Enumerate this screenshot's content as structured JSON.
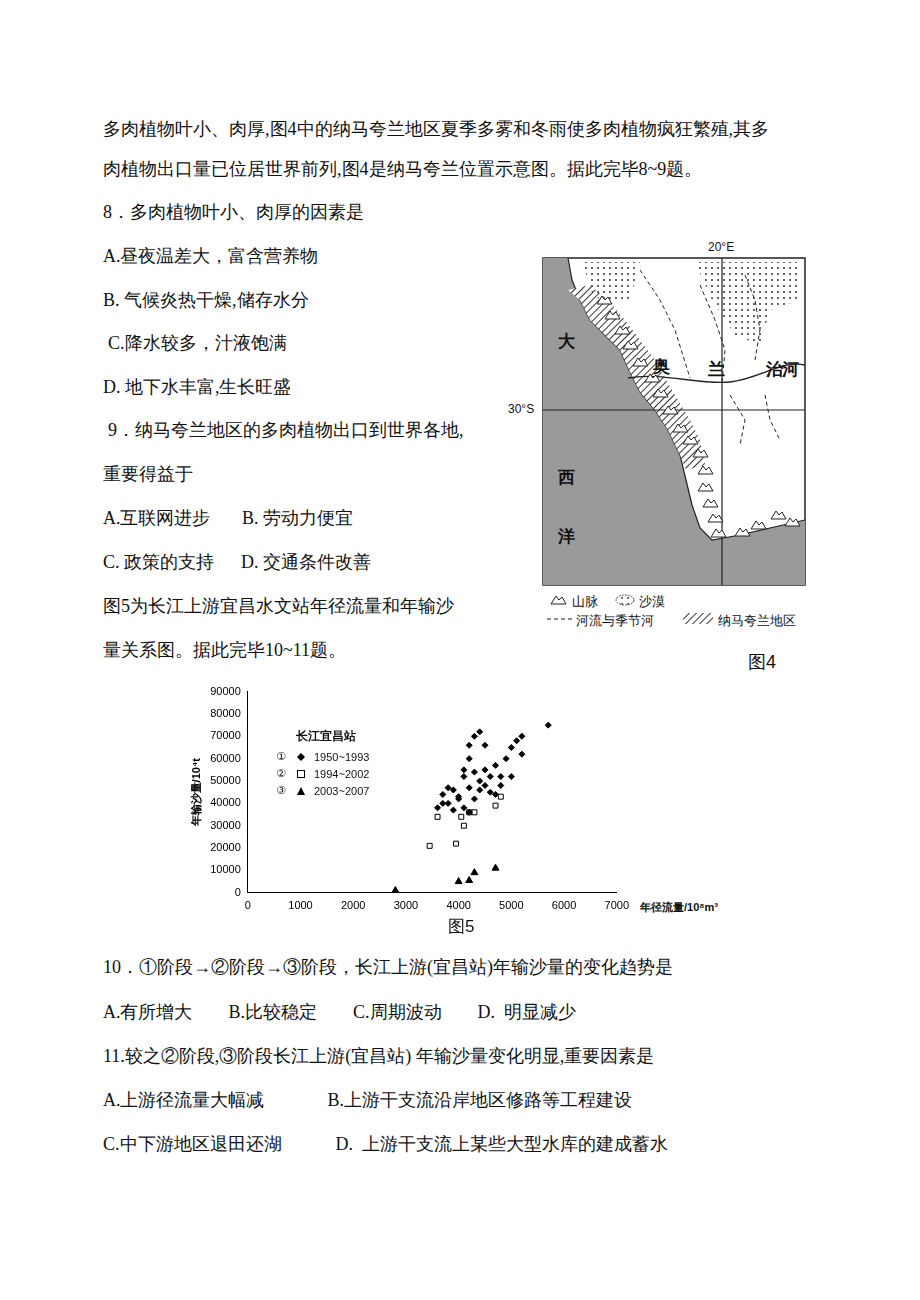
{
  "top_lines": [
    "多肉植物叶小、肉厚,图4中的纳马夸兰地区夏季多雾和冬雨使多肉植物疯狂繁殖,其多",
    "肉植物出口量已位居世界前列,图4是纳马夸兰位置示意图。据此完毕8~9题。",
    "8．多肉植物叶小、肉厚的因素是",
    "A.昼夜温差大，富含营养物",
    "B. 气候炎热干燥,储存水分",
    "C.降水较多，汁液饱满",
    "D. 地下水丰富,生长旺盛",
    "9．纳马夸兰地区的多肉植物出口到世界各地,",
    "重要得益于",
    "A.互联网进步       B. 劳动力便宜",
    "C. 政策的支持      D. 交通条件改善",
    "图5为长江上游宜昌水文站年径流量和年输沙",
    "量关系图。据此完毕10~11题。"
  ],
  "bottom_lines": [
    "10．①阶段→②阶段→③阶段，长江上游(宜昌站)年输沙量的变化趋势是",
    "A.有所增大        B.比较稳定        C.周期波动        D.  明显减少",
    "11.较之②阶段,③阶段长江上游(宜昌站) 年输沙量变化明显,重要因素是",
    "A.上游径流量大幅减              B.上游干支流沿岸地区修路等工程建设",
    "C.中下游地区退田还湖            D.  上游干支流上某些大型水库的建成蓄水"
  ],
  "figure4": {
    "caption": "图4",
    "lon_label": "20°E",
    "lat_label": "30°S",
    "ocean": [
      "大",
      "西",
      "洋"
    ],
    "river": [
      "奥",
      "兰",
      "治",
      "河"
    ],
    "legend": {
      "mountain": "山脉",
      "desert": "沙漠",
      "river": "河流与季节河",
      "region": "纳马夸兰地区"
    }
  },
  "figure5_caption": "图5",
  "chart_data": {
    "type": "scatter",
    "title": "长江宜昌站",
    "x_label": "年径流量/10⁸m³",
    "y_label": "年输沙量/10⁴t",
    "xlim": [
      0,
      7000
    ],
    "xticks": [
      0,
      1000,
      2000,
      3000,
      4000,
      5000,
      6000,
      7000
    ],
    "ylim": [
      0,
      90000
    ],
    "yticks": [
      0,
      10000,
      20000,
      30000,
      40000,
      50000,
      60000,
      70000,
      80000,
      90000
    ],
    "grid": false,
    "legend": "upper left",
    "series": [
      {
        "name": "1950~1993",
        "index_label": "①",
        "marker": "diamond",
        "color": "#000000",
        "x": [
          5700,
          5200,
          5100,
          5200,
          4900,
          5000,
          4400,
          4300,
          4200,
          4500,
          4200,
          4100,
          4300,
          4500,
          4600,
          4700,
          4800,
          3800,
          3700,
          3800,
          4100,
          4000,
          3600,
          3900,
          4400,
          4500,
          4200,
          4000,
          3900,
          4300,
          4700,
          5000,
          4800,
          4600,
          4100,
          4400,
          3700,
          4200
        ],
        "values": [
          75000,
          70000,
          68000,
          62000,
          60000,
          65000,
          72000,
          70000,
          66000,
          66000,
          60000,
          55000,
          54000,
          55000,
          52000,
          57000,
          52000,
          47000,
          44000,
          40000,
          38000,
          42000,
          38000,
          46000,
          46000,
          48000,
          47000,
          43000,
          37000,
          42000,
          44000,
          52000,
          48000,
          45000,
          52000,
          50000,
          40000,
          36000
        ]
      },
      {
        "name": "1994~2002",
        "index_label": "②",
        "marker": "square",
        "color": "#000000",
        "x": [
          3450,
          3600,
          3950,
          4100,
          4200,
          4300,
          4700,
          4800,
          4050
        ],
        "values": [
          21000,
          34000,
          22000,
          30000,
          36000,
          36000,
          39000,
          43000,
          34000
        ]
      },
      {
        "name": "2003~2007",
        "index_label": "③",
        "marker": "triangle",
        "color": "#000000",
        "x": [
          2800,
          4000,
          4200,
          4300,
          4700
        ],
        "values": [
          1000,
          5000,
          5500,
          9000,
          11000
        ]
      }
    ]
  }
}
